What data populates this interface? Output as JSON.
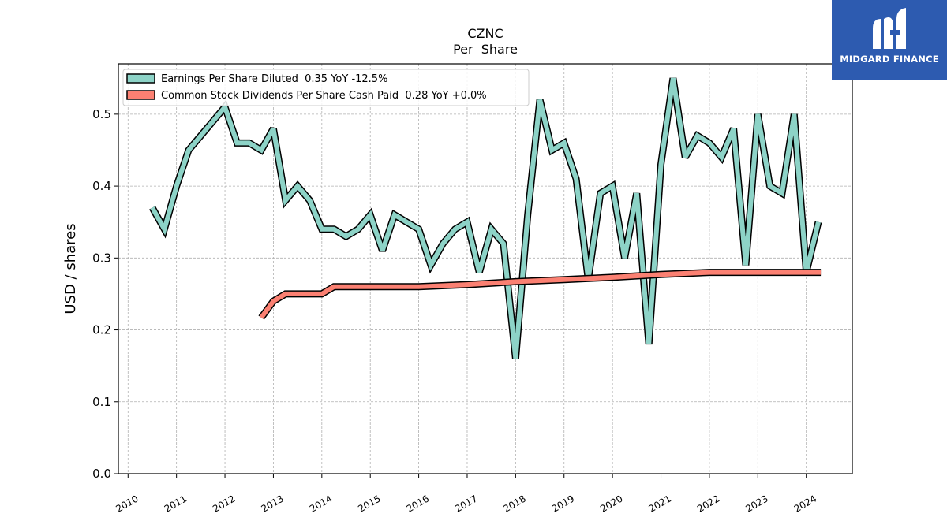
{
  "brand": {
    "name": "MIDGARD FINANCE",
    "logo_icon": "midgard-m-logo-icon",
    "color": "#2d5bb0"
  },
  "chart_data": {
    "type": "line",
    "title": "CZNC",
    "subtitle": "Per  Share",
    "ylabel": "USD / shares",
    "xlabel": "",
    "xlim": [
      2009.8,
      2024.95
    ],
    "ylim": [
      0.0,
      0.57
    ],
    "yticks": [
      0.0,
      0.1,
      0.2,
      0.3,
      0.4,
      0.5
    ],
    "ytick_labels": [
      "0.0",
      "0.1",
      "0.2",
      "0.3",
      "0.4",
      "0.5"
    ],
    "xticks": [
      2010,
      2011,
      2012,
      2013,
      2014,
      2015,
      2016,
      2017,
      2018,
      2019,
      2020,
      2021,
      2022,
      2023,
      2024
    ],
    "xtick_labels": [
      "2010",
      "2011",
      "2012",
      "2013",
      "2014",
      "2015",
      "2016",
      "2017",
      "2018",
      "2019",
      "2020",
      "2021",
      "2022",
      "2023",
      "2024"
    ],
    "grid": true,
    "legend_position": "top-left",
    "series": [
      {
        "name": "Earnings Per Share Diluted",
        "legend_label": "Earnings Per Share Diluted  0.35 YoY -12.5%",
        "color": "#8dd3c7",
        "x": [
          2010.5,
          2010.75,
          2011.0,
          2011.25,
          2011.5,
          2011.75,
          2012.0,
          2012.25,
          2012.5,
          2012.75,
          2013.0,
          2013.25,
          2013.5,
          2013.75,
          2014.0,
          2014.25,
          2014.5,
          2014.75,
          2015.0,
          2015.25,
          2015.5,
          2015.75,
          2016.0,
          2016.25,
          2016.5,
          2016.75,
          2017.0,
          2017.25,
          2017.5,
          2017.75,
          2018.0,
          2018.25,
          2018.5,
          2018.75,
          2019.0,
          2019.25,
          2019.5,
          2019.75,
          2020.0,
          2020.25,
          2020.5,
          2020.75,
          2021.0,
          2021.25,
          2021.5,
          2021.75,
          2022.0,
          2022.25,
          2022.5,
          2022.75,
          2023.0,
          2023.25,
          2023.5,
          2023.75,
          2024.0,
          2024.25
        ],
        "y": [
          0.37,
          0.34,
          0.4,
          0.45,
          0.47,
          0.49,
          0.51,
          0.46,
          0.46,
          0.45,
          0.48,
          0.38,
          0.4,
          0.38,
          0.34,
          0.34,
          0.33,
          0.34,
          0.36,
          0.31,
          0.36,
          0.35,
          0.34,
          0.29,
          0.32,
          0.34,
          0.35,
          0.28,
          0.34,
          0.32,
          0.16,
          0.36,
          0.52,
          0.45,
          0.46,
          0.41,
          0.27,
          0.39,
          0.4,
          0.3,
          0.39,
          0.18,
          0.43,
          0.55,
          0.44,
          0.47,
          0.46,
          0.44,
          0.48,
          0.29,
          0.5,
          0.4,
          0.39,
          0.5,
          0.28,
          0.35
        ]
      },
      {
        "name": "Common Stock Dividends Per Share Cash Paid",
        "legend_label": "Common Stock Dividends Per Share Cash Paid  0.28 YoY +0.0%",
        "color": "#fb8072",
        "x": [
          2012.75,
          2013.0,
          2013.25,
          2013.5,
          2013.75,
          2014.0,
          2014.25,
          2014.5,
          2014.75,
          2015.0,
          2015.25,
          2015.5,
          2015.75,
          2016.0,
          2017.0,
          2018.0,
          2019.0,
          2020.0,
          2021.0,
          2022.0,
          2022.25,
          2022.5,
          2022.75,
          2023.0,
          2023.25,
          2023.5,
          2023.75,
          2024.0,
          2024.3
        ],
        "y": [
          0.217,
          0.24,
          0.25,
          0.25,
          0.25,
          0.25,
          0.26,
          0.26,
          0.26,
          0.26,
          0.26,
          0.26,
          0.26,
          0.26,
          0.263,
          0.267,
          0.27,
          0.273,
          0.277,
          0.28,
          0.28,
          0.28,
          0.28,
          0.28,
          0.28,
          0.28,
          0.28,
          0.28,
          0.28
        ]
      }
    ]
  }
}
